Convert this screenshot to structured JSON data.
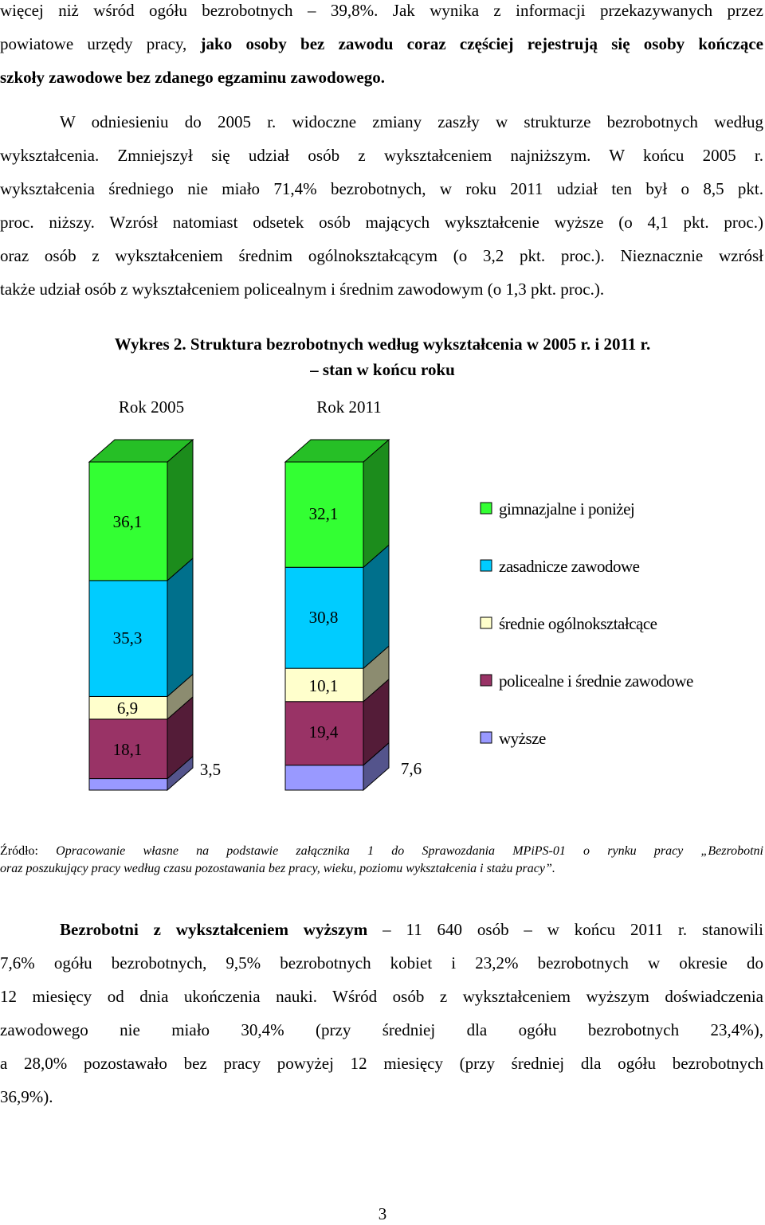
{
  "intro": {
    "lines": [
      [
        {
          "t": "więcej niż wśród ogółu bezrobotnych – 39,8%. Jak wynika z informacji przekazywanych przez",
          "b": false
        }
      ],
      [
        {
          "t": "powiatowe urzędy pracy, ",
          "b": false
        },
        {
          "t": "jako osoby bez zawodu coraz częściej rejestrują się osoby kończące",
          "b": true
        }
      ],
      [
        {
          "t": "szkoły zawodowe bez zdanego egzaminu zawodowego.",
          "b": true
        }
      ]
    ]
  },
  "para2": {
    "lines": [
      "W odniesieniu do 2005 r. widoczne zmiany zaszły w strukturze bezrobotnych według",
      "wykształcenia. Zmniejszył się udział osób z wykształceniem najniższym. W końcu 2005 r.",
      "wykształcenia średniego nie miało 71,4% bezrobotnych, w roku 2011 udział ten był o 8,5 pkt.",
      "proc. niższy. Wzrósł natomiast odsetek osób mających wykształcenie wyższe (o 4,1 pkt. proc.)",
      "oraz osób z wykształceniem średnim ogólnokształcącym (o 3,2 pkt. proc.). Nieznacznie wzrósł",
      "także udział osób z wykształceniem policealnym i średnim zawodowym (o 1,3 pkt. proc.)."
    ]
  },
  "figure": {
    "caption_line1": "Wykres 2. Struktura bezrobotnych według wykształcenia w 2005 r. i 2011 r.",
    "caption_line2": "– stan w końcu roku"
  },
  "chart_data": {
    "type": "bar",
    "stacked": true,
    "categories": [
      "Rok 2005",
      "Rok 2011"
    ],
    "series": [
      {
        "name": "wyższe",
        "values": [
          3.5,
          7.6
        ],
        "color": "#9999ff"
      },
      {
        "name": "policealne i średnie zawodowe",
        "values": [
          18.1,
          19.4
        ],
        "color": "#993366"
      },
      {
        "name": "średnie ogólnokształcące",
        "values": [
          6.9,
          10.1
        ],
        "color": "#ffffcc"
      },
      {
        "name": "zasadnicze zawodowe",
        "values": [
          35.3,
          30.8
        ],
        "color": "#00ccff"
      },
      {
        "name": "gimnazjalne i poniżej",
        "values": [
          36.1,
          32.1
        ],
        "color": "#33ff33"
      }
    ],
    "data_labels": [
      [
        "3,5",
        "18,1",
        "6,9",
        "35,3",
        "36,1"
      ],
      [
        "7,6",
        "19,4",
        "10,1",
        "30,8",
        "32,1"
      ]
    ],
    "legend_order": [
      "gimnazjalne i poniżej",
      "zasadnicze zawodowe",
      "średnie ogólnokształcące",
      "policealne i średnie zawodowe",
      "wyższe"
    ],
    "legend_position": "right",
    "ylim": [
      0,
      100
    ],
    "grid": false
  },
  "source": {
    "prefix": "Źródło:",
    "line1": " Opracowanie własne na podstawie załącznika 1 do Sprawozdania MPiPS-01 o rynku pracy „Bezrobotni",
    "line2": "oraz poszukujący pracy według czasu pozostawania bez pracy, wieku, poziomu wykształcenia i stażu pracy”."
  },
  "para3": {
    "lead": "Bezrobotni z wykształceniem wyższym",
    "line1_rest": " – 11 640 osób – w końcu 2011 r. stanowili",
    "lines": [
      "7,6% ogółu bezrobotnych, 9,5% bezrobotnych kobiet i 23,2% bezrobotnych w okresie do",
      "12 miesięcy od dnia ukończenia nauki. Wśród osób z wykształceniem wyższym doświadczenia",
      "zawodowego nie miało 30,4% (przy średniej dla ogółu bezrobotnych 23,4%),",
      "a 28,0% pozostawało bez pracy powyżej 12 miesięcy (przy średniej dla ogółu bezrobotnych",
      "36,9%)."
    ]
  },
  "page_number": "3"
}
